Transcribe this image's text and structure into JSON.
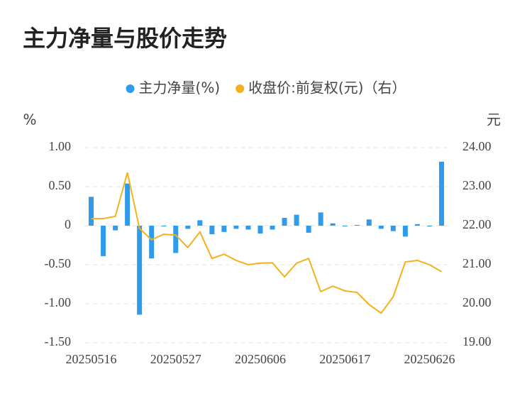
{
  "chart_data": {
    "type": "combo",
    "title": "主力净量与股价走势",
    "ylabel": "%",
    "y2label": "元",
    "categories": [
      "20250516",
      null,
      null,
      null,
      null,
      null,
      null,
      "20250527",
      null,
      null,
      null,
      null,
      null,
      null,
      "20250606",
      null,
      null,
      null,
      null,
      null,
      null,
      "20250617",
      null,
      null,
      null,
      null,
      null,
      null,
      "20250626",
      null
    ],
    "ylim": [
      -1.5,
      1.0
    ],
    "yticks": [
      {
        "value": 1.0,
        "label": "1.00"
      },
      {
        "value": 0.5,
        "label": "0.50"
      },
      0,
      {
        "value": -0.5,
        "label": "-0.50"
      },
      {
        "value": -1.0,
        "label": "-1.00"
      },
      {
        "value": -1.5,
        "label": "-1.50"
      }
    ],
    "y2lim": [
      19,
      24
    ],
    "y2ticks": [
      {
        "value": 24,
        "label": "24.00"
      },
      {
        "value": 23,
        "label": "23.00"
      },
      {
        "value": 22,
        "label": "22.00"
      },
      {
        "value": 21,
        "label": "21.00"
      },
      {
        "value": 20,
        "label": "20.00"
      },
      {
        "value": 19,
        "label": "19.00"
      }
    ],
    "grid": true,
    "series": [
      {
        "name": "主力净量(%)",
        "type": "bar",
        "axis": "y",
        "color": "#2f9bea",
        "values": [
          0.37,
          -0.39,
          -0.06,
          0.54,
          -1.14,
          -0.42,
          -0.01,
          -0.35,
          -0.04,
          0.07,
          -0.11,
          -0.08,
          -0.04,
          -0.05,
          -0.1,
          -0.05,
          0.1,
          0.14,
          -0.09,
          0.17,
          0.03,
          -0.01,
          0.01,
          0.08,
          -0.04,
          -0.07,
          -0.14,
          0.02,
          -0.01,
          0.82
        ]
      },
      {
        "name": "收盘价:前复权(元)（右）",
        "type": "line",
        "axis": "y2",
        "color": "#f5b11b",
        "values": [
          22.18,
          22.18,
          22.24,
          23.36,
          21.93,
          21.64,
          21.78,
          21.76,
          21.44,
          21.84,
          21.16,
          21.27,
          21.11,
          21.0,
          21.04,
          21.05,
          20.69,
          21.04,
          21.16,
          20.31,
          20.45,
          20.33,
          20.29,
          19.98,
          19.76,
          20.18,
          21.07,
          21.11,
          21.0,
          20.82
        ]
      }
    ]
  }
}
